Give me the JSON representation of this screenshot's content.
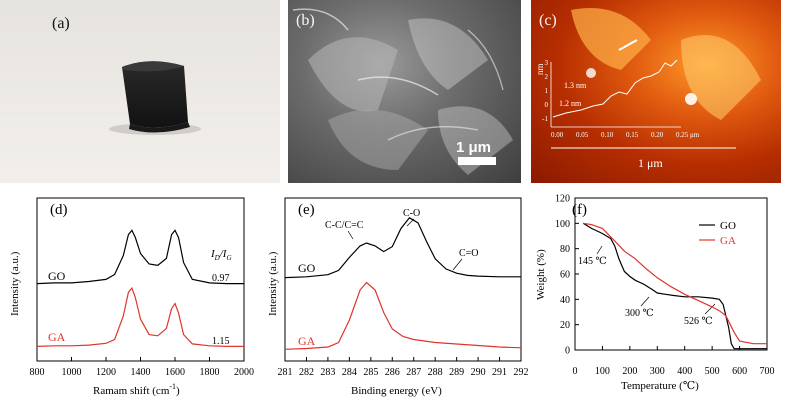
{
  "panels": {
    "a": {
      "label": "(a)"
    },
    "b": {
      "label": "(b)",
      "scale_bar": "1 μm"
    },
    "c": {
      "label": "(c)",
      "scale_bar": "1 μm",
      "inset_ylabel": "nm",
      "inset_yticks": [
        "3",
        "2",
        "1",
        "0",
        "-1"
      ],
      "inset_xticks": [
        "0.00",
        "0.05",
        "0.10",
        "0.15",
        "0.20",
        "0.25 μm"
      ],
      "height_labels": [
        "1.3 nm",
        "1.2 nm"
      ]
    },
    "d": {
      "label": "(d)",
      "xlabel": "Ramam shift (cm",
      "xlabel_sup": "-1",
      "xlabel_end": ")",
      "ylabel": "Intensity (a.u.)",
      "xticks": [
        "800",
        "1000",
        "1200",
        "1400",
        "1600",
        "1800",
        "2000"
      ],
      "ratio_label_main": "I",
      "ratio_label_sub1": "D",
      "ratio_label_mid": "/I",
      "ratio_label_sub2": "G",
      "series_labels": [
        "GO",
        "GA"
      ],
      "ratios": [
        "0.97",
        "1.15"
      ]
    },
    "e": {
      "label": "(e)",
      "xlabel": "Binding energy (eV)",
      "ylabel": "Intensity (a.u.)",
      "xticks": [
        "281",
        "282",
        "283",
        "284",
        "285",
        "286",
        "287",
        "288",
        "289",
        "290",
        "291",
        "292"
      ],
      "annotations": [
        "C-C/C=C",
        "C-O",
        "C=O"
      ],
      "series_labels": [
        "GO",
        "GA"
      ]
    },
    "f": {
      "label": "(f)",
      "xlabel": "Temperature (℃)",
      "ylabel": "Weight (%)",
      "xticks": [
        "0",
        "100",
        "200",
        "300",
        "400",
        "500",
        "600",
        "700"
      ],
      "yticks": [
        "0",
        "20",
        "40",
        "60",
        "80",
        "100",
        "120"
      ],
      "legend": [
        "GO",
        "GA"
      ],
      "annotations": [
        "145 ℃",
        "300 ℃",
        "526 ℃"
      ]
    }
  },
  "chart_data": [
    {
      "type": "line",
      "panel": "d",
      "xlabel": "Ramam shift (cm-1)",
      "ylabel": "Intensity (a.u.)",
      "xlim": [
        800,
        2000
      ],
      "series": [
        {
          "name": "GO",
          "color": "#000000",
          "x": [
            800,
            900,
            1000,
            1100,
            1200,
            1250,
            1300,
            1330,
            1350,
            1370,
            1400,
            1450,
            1500,
            1550,
            1580,
            1600,
            1620,
            1650,
            1700,
            1800,
            1900,
            2000
          ],
          "y": [
            0.02,
            0.03,
            0.03,
            0.05,
            0.08,
            0.15,
            0.42,
            0.72,
            0.78,
            0.68,
            0.45,
            0.3,
            0.28,
            0.38,
            0.72,
            0.78,
            0.68,
            0.32,
            0.08,
            0.03,
            0.02,
            0.02
          ]
        },
        {
          "name": "GA",
          "color": "#e0342a",
          "x": [
            800,
            900,
            1000,
            1100,
            1200,
            1250,
            1300,
            1330,
            1350,
            1370,
            1400,
            1450,
            1500,
            1550,
            1580,
            1600,
            1620,
            1650,
            1700,
            1800,
            1900,
            2000
          ],
          "y": [
            0.01,
            0.02,
            0.02,
            0.03,
            0.06,
            0.12,
            0.5,
            0.88,
            0.95,
            0.8,
            0.45,
            0.2,
            0.18,
            0.3,
            0.62,
            0.7,
            0.55,
            0.2,
            0.05,
            0.02,
            0.01,
            0.01
          ]
        }
      ],
      "ratios": {
        "GO": 0.97,
        "GA": 1.15
      }
    },
    {
      "type": "line",
      "panel": "e",
      "xlabel": "Binding energy (eV)",
      "ylabel": "Intensity (a.u.)",
      "xlim": [
        281,
        292
      ],
      "series": [
        {
          "name": "GO",
          "color": "#000000",
          "x": [
            281,
            282,
            283,
            283.5,
            284,
            284.5,
            284.8,
            285.2,
            285.6,
            286,
            286.4,
            286.8,
            287.2,
            287.6,
            288,
            288.5,
            289,
            289.5,
            290,
            291,
            292
          ],
          "y": [
            0.02,
            0.03,
            0.06,
            0.12,
            0.3,
            0.46,
            0.5,
            0.46,
            0.38,
            0.45,
            0.7,
            0.85,
            0.78,
            0.52,
            0.28,
            0.14,
            0.08,
            0.05,
            0.04,
            0.03,
            0.03
          ]
        },
        {
          "name": "GA",
          "color": "#e0342a",
          "x": [
            281,
            282,
            283,
            283.5,
            284,
            284.5,
            284.8,
            285.2,
            285.6,
            286,
            286.5,
            287,
            287.5,
            288,
            289,
            290,
            291,
            292
          ],
          "y": [
            0.01,
            0.02,
            0.04,
            0.1,
            0.4,
            0.8,
            0.9,
            0.8,
            0.5,
            0.28,
            0.18,
            0.14,
            0.12,
            0.1,
            0.08,
            0.06,
            0.04,
            0.03
          ]
        }
      ]
    },
    {
      "type": "line",
      "panel": "f",
      "xlabel": "Temperature (℃)",
      "ylabel": "Weight (%)",
      "xlim": [
        0,
        700
      ],
      "ylim": [
        0,
        120
      ],
      "legend": "top-right",
      "series": [
        {
          "name": "GO",
          "color": "#000000",
          "x": [
            30,
            60,
            100,
            130,
            145,
            160,
            180,
            200,
            220,
            250,
            280,
            300,
            330,
            360,
            400,
            450,
            500,
            526,
            540,
            560,
            570,
            580,
            600,
            650,
            700
          ],
          "y": [
            100,
            96,
            92,
            88,
            82,
            72,
            62,
            58,
            55,
            52,
            48,
            45,
            44,
            43,
            42,
            42,
            41,
            40,
            36,
            18,
            5,
            1,
            1,
            1,
            1
          ]
        },
        {
          "name": "GA",
          "color": "#e0342a",
          "x": [
            30,
            60,
            100,
            145,
            180,
            220,
            260,
            300,
            350,
            400,
            450,
            500,
            526,
            550,
            580,
            600,
            650,
            700
          ],
          "y": [
            100,
            99,
            96,
            86,
            78,
            72,
            64,
            57,
            50,
            44,
            39,
            34,
            31,
            27,
            14,
            7,
            5,
            5
          ]
        }
      ]
    }
  ]
}
